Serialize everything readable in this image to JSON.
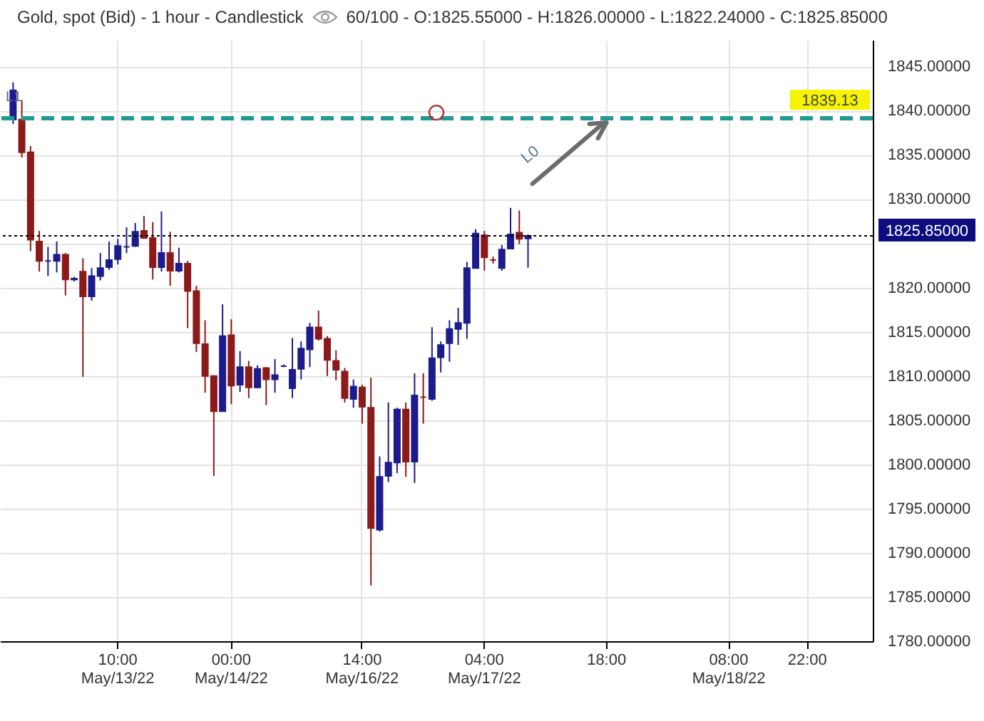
{
  "chart_data": {
    "type": "candlestick",
    "title": "Gold, spot (Bid) - 1 hour - Candlestick",
    "subtitle": "60/100 - O:1825.55000 - H:1826.00000 - L:1822.24000 - C:1825.85000",
    "categories": [
      null,
      null,
      null,
      null,
      null,
      null,
      null,
      null,
      null,
      null,
      null,
      null,
      null,
      "10:00\nMay/13/22",
      null,
      null,
      null,
      null,
      null,
      null,
      null,
      null,
      null,
      null,
      null,
      null,
      "00:00\nMay/14/22",
      null,
      null,
      null,
      null,
      null,
      null,
      null,
      null,
      null,
      null,
      null,
      null,
      null,
      null,
      "14:00\nMay/16/22",
      null,
      null,
      null,
      null,
      null,
      null,
      null,
      null,
      null,
      null,
      null,
      null,
      null,
      "04:00\nMay/17/22",
      null,
      null,
      null,
      null,
      null,
      null,
      null,
      null,
      null,
      null,
      null,
      null,
      null,
      "18:00",
      null,
      null,
      null,
      null,
      null,
      null,
      null,
      null,
      null,
      null,
      null,
      null,
      null,
      "08:00\nMay/18/22",
      null,
      null,
      null,
      null,
      null,
      null,
      null,
      null,
      "22:00",
      null,
      null,
      null,
      null,
      null,
      null,
      null
    ],
    "ohlc": [
      null,
      [
        1839.0,
        1843.2,
        1838.5,
        1842.3
      ],
      [
        1839.0,
        1841.2,
        1834.7,
        1835.3
      ],
      [
        1835.3,
        1836.0,
        1824.1,
        1825.4
      ],
      [
        1825.2,
        1826.4,
        1821.8,
        1823.0
      ],
      [
        1823.0,
        1824.6,
        1821.3,
        1823.0
      ],
      [
        1823.0,
        1825.2,
        1821.7,
        1823.7
      ],
      [
        1823.7,
        1823.9,
        1819.1,
        1820.9
      ],
      [
        1820.9,
        1821.2,
        1820.7,
        1821.0
      ],
      [
        1821.8,
        1823.3,
        1809.9,
        1819.0
      ],
      [
        1819.0,
        1822.2,
        1818.5,
        1821.3
      ],
      [
        1821.3,
        1823.9,
        1820.8,
        1822.2
      ],
      [
        1822.3,
        1825.2,
        1822.0,
        1823.1
      ],
      [
        1823.2,
        1825.5,
        1822.6,
        1824.7
      ],
      [
        1824.6,
        1826.8,
        1823.9,
        1824.6
      ],
      [
        1824.7,
        1827.3,
        1824.6,
        1826.3
      ],
      [
        1826.4,
        1828.1,
        1825.5,
        1825.6
      ],
      [
        1825.6,
        1827.4,
        1820.9,
        1822.3
      ],
      [
        1822.3,
        1828.6,
        1821.8,
        1823.9
      ],
      [
        1823.9,
        1826.3,
        1820.2,
        1821.9
      ],
      [
        1821.9,
        1824.5,
        1821.7,
        1822.7
      ],
      [
        1822.7,
        1823.0,
        1815.4,
        1819.6
      ],
      [
        1819.6,
        1820.2,
        1812.7,
        1813.7
      ],
      [
        1813.6,
        1816.3,
        1808.1,
        1810.0
      ],
      [
        1810.0,
        1810.0,
        1798.7,
        1806.0
      ],
      [
        1806.0,
        1818.1,
        1806.0,
        1814.5
      ],
      [
        1814.6,
        1816.4,
        1806.8,
        1808.9
      ],
      [
        1809.0,
        1812.8,
        1808.2,
        1811.0
      ],
      [
        1811.0,
        1811.7,
        1807.5,
        1808.7
      ],
      [
        1808.7,
        1811.2,
        1808.6,
        1810.8
      ],
      [
        1810.9,
        1811.0,
        1806.7,
        1809.6
      ],
      [
        1809.6,
        1811.9,
        1808.1,
        1810.1
      ],
      [
        1811.1,
        1811.3,
        1811.0,
        1811.1
      ],
      [
        1808.6,
        1814.3,
        1807.5,
        1810.7
      ],
      [
        1810.8,
        1813.9,
        1809.6,
        1813.1
      ],
      [
        1813.0,
        1816.0,
        1811.0,
        1815.5
      ],
      [
        1815.5,
        1817.4,
        1814.0,
        1814.2
      ],
      [
        1814.2,
        1814.5,
        1810.0,
        1811.8
      ],
      [
        1811.7,
        1812.9,
        1809.5,
        1810.7
      ],
      [
        1810.5,
        1810.9,
        1807.0,
        1807.5
      ],
      [
        1807.4,
        1809.6,
        1806.4,
        1808.8
      ],
      [
        1808.7,
        1809.0,
        1804.6,
        1806.5
      ],
      [
        1806.4,
        1809.8,
        1786.3,
        1792.8
      ],
      [
        1792.6,
        1800.9,
        1792.4,
        1798.6
      ],
      [
        1798.7,
        1807.0,
        1798.0,
        1800.2
      ],
      [
        1800.2,
        1806.4,
        1799.0,
        1806.2
      ],
      [
        1806.2,
        1807.0,
        1798.6,
        1800.3
      ],
      [
        1800.3,
        1810.3,
        1797.9,
        1807.8
      ],
      [
        1807.6,
        1810.3,
        1804.6,
        1807.6
      ],
      [
        1807.4,
        1815.5,
        1807.2,
        1812.0
      ],
      [
        1812.1,
        1813.9,
        1810.4,
        1813.5
      ],
      [
        1813.7,
        1816.3,
        1811.6,
        1815.3
      ],
      [
        1815.3,
        1817.7,
        1813.5,
        1816.0
      ],
      [
        1816.0,
        1822.9,
        1814.2,
        1822.2
      ],
      [
        1822.2,
        1826.6,
        1822.2,
        1826.1
      ],
      [
        1825.9,
        1826.4,
        1821.9,
        1823.4
      ],
      [
        1823.1,
        1823.5,
        1822.7,
        1823.1
      ],
      [
        1822.2,
        1824.8,
        1821.9,
        1824.3
      ],
      [
        1824.4,
        1829.0,
        1824.4,
        1826.0
      ],
      [
        1826.2,
        1828.7,
        1824.9,
        1825.5
      ],
      [
        1825.55,
        1826.0,
        1822.24,
        1825.85
      ],
      null,
      null,
      null,
      null,
      null,
      null,
      null,
      null,
      null,
      null,
      null,
      null,
      null,
      null,
      null,
      null,
      null,
      null,
      null,
      null,
      null,
      null,
      null,
      null,
      null,
      null,
      null,
      null,
      null,
      null,
      null,
      null,
      null,
      null,
      null,
      null,
      null,
      null,
      null
    ],
    "colors": [
      null,
      "#1c1c8c",
      "#8b1a1a",
      "#8b1a1a",
      "#8b1a1a",
      "#1c1c8c",
      "#1c1c8c",
      "#8b1a1a",
      "#1c1c8c",
      "#8b1a1a",
      "#1c1c8c",
      "#1c1c8c",
      "#1c1c8c",
      "#1c1c8c",
      "#1c1c8c",
      "#1c1c8c",
      "#8b1a1a",
      "#8b1a1a",
      "#1c1c8c",
      "#8b1a1a",
      "#1c1c8c",
      "#8b1a1a",
      "#8b1a1a",
      "#8b1a1a",
      "#8b1a1a",
      "#1c1c8c",
      "#8b1a1a",
      "#1c1c8c",
      "#8b1a1a",
      "#1c1c8c",
      "#8b1a1a",
      "#1c1c8c",
      "#1c1c8c",
      "#1c1c8c",
      "#1c1c8c",
      "#1c1c8c",
      "#8b1a1a",
      "#8b1a1a",
      "#8b1a1a",
      "#8b1a1a",
      "#1c1c8c",
      "#8b1a1a",
      "#8b1a1a",
      "#1c1c8c",
      "#1c1c8c",
      "#1c1c8c",
      "#8b1a1a",
      "#1c1c8c",
      "#8b1a1a",
      "#1c1c8c",
      "#1c1c8c",
      "#1c1c8c",
      "#1c1c8c",
      "#1c1c8c",
      "#1c1c8c",
      "#8b1a1a",
      "#8b1a1a",
      "#1c1c8c",
      "#1c1c8c",
      "#8b1a1a",
      "#1c1c8c",
      null,
      null,
      null,
      null,
      null,
      null,
      null,
      null,
      null,
      null,
      null,
      null,
      null,
      null,
      null,
      null,
      null,
      null,
      null,
      null,
      null,
      null,
      null,
      null,
      null,
      null,
      null,
      null,
      null,
      null,
      null,
      null,
      null,
      null,
      null,
      null,
      null,
      null,
      null
    ],
    "ylim": [
      1780,
      1848
    ],
    "yticks": [
      {
        "value": 1780,
        "label": "1780.00000"
      },
      {
        "value": 1785,
        "label": "1785.00000"
      },
      {
        "value": 1790,
        "label": "1790.00000"
      },
      {
        "value": 1795,
        "label": "1795.00000"
      },
      {
        "value": 1800,
        "label": "1800.00000"
      },
      {
        "value": 1805,
        "label": "1805.00000"
      },
      {
        "value": 1810,
        "label": "1810.00000"
      },
      {
        "value": 1815,
        "label": "1815.00000"
      },
      {
        "value": 1820,
        "label": "1820.00000"
      },
      {
        "value": 1825,
        "label": null
      },
      {
        "value": 1830,
        "label": "1830.00000"
      },
      {
        "value": 1835,
        "label": "1835.00000"
      },
      {
        "value": 1840,
        "label": "1840.00000"
      },
      {
        "value": 1845,
        "label": "1845.00000"
      }
    ],
    "ref_lines": [
      {
        "axis": "y",
        "value": 1839.13,
        "label": "1839.13",
        "color": "#1f9a94",
        "line_style": "dashed"
      },
      {
        "axis": "y",
        "value": 1825.85,
        "label": "1825.85000",
        "color": "#000000",
        "line_style": "dotted"
      }
    ],
    "annotations": [
      "L1",
      "L0"
    ],
    "grid": true
  }
}
